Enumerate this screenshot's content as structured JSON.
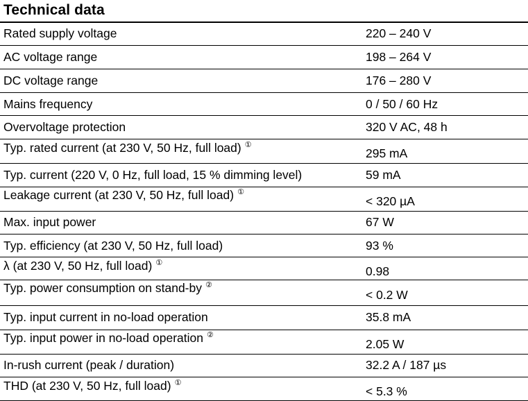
{
  "title": "Technical data",
  "rows": [
    {
      "label": "Rated supply voltage",
      "value": "220 – 240 V",
      "note": ""
    },
    {
      "label": "AC voltage range",
      "value": "198 – 264 V",
      "note": ""
    },
    {
      "label": "DC voltage range",
      "value": "176 – 280 V",
      "note": ""
    },
    {
      "label": "Mains frequency",
      "value": "0 / 50 / 60 Hz",
      "note": ""
    },
    {
      "label": "Overvoltage protection",
      "value": "320 V AC, 48 h",
      "note": ""
    },
    {
      "label": "Typ. rated current (at 230 V, 50 Hz, full load)",
      "value": "295 mA",
      "note": "①"
    },
    {
      "label": "Typ. current (220 V, 0 Hz, full load, 15 % dimming level)",
      "value": "59 mA",
      "note": ""
    },
    {
      "label": "Leakage current (at 230 V, 50 Hz, full load)",
      "value": "< 320 µA",
      "note": "①"
    },
    {
      "label": "Max. input power",
      "value": "67 W",
      "note": ""
    },
    {
      "label": "Typ. efficiency (at 230 V, 50 Hz, full load)",
      "value": "93 %",
      "note": ""
    },
    {
      "label": "λ (at 230 V, 50 Hz, full load)",
      "value": "0.98",
      "note": "①"
    },
    {
      "label": "Typ. power consumption on stand-by",
      "value": "< 0.2 W",
      "note": "②"
    },
    {
      "label": "Typ. input current in no-load operation",
      "value": "35.8 mA",
      "note": ""
    },
    {
      "label": "Typ. input power in no-load operation",
      "value": "2.05 W",
      "note": "②"
    },
    {
      "label": "In-rush current (peak / duration)",
      "value": "32.2 A / 187 µs",
      "note": ""
    },
    {
      "label": "THD (at 230 V, 50 Hz, full load)",
      "value": "< 5.3 %",
      "note": "①"
    }
  ]
}
